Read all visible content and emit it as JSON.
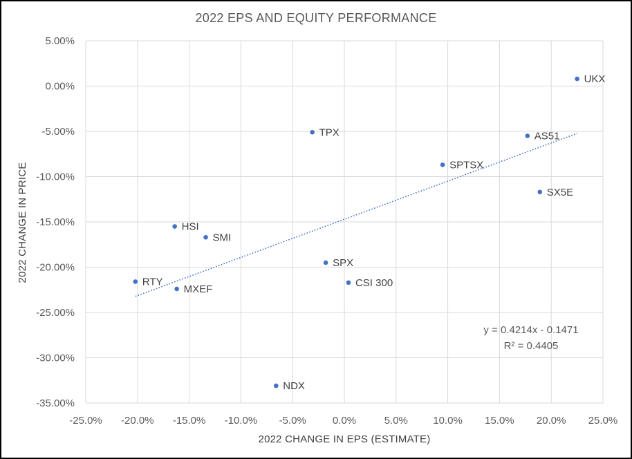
{
  "chart_data": {
    "type": "scatter",
    "title": "2022 EPS AND EQUITY PERFORMANCE",
    "xlabel": "2022 CHANGE IN EPS (ESTIMATE)",
    "ylabel": "2022 CHANGE IN PRICE",
    "xlim": [
      -0.25,
      0.25
    ],
    "ylim": [
      -0.35,
      0.05
    ],
    "x_ticks": [
      -0.25,
      -0.2,
      -0.15,
      -0.1,
      -0.05,
      0,
      0.05,
      0.1,
      0.15,
      0.2,
      0.25
    ],
    "x_tick_labels": [
      "-25.0%",
      "-20.0%",
      "-15.0%",
      "-10.0%",
      "-5.0%",
      "0.0%",
      "5.0%",
      "10.0%",
      "15.0%",
      "20.0%",
      "25.0%"
    ],
    "y_ticks": [
      0.05,
      0,
      -0.05,
      -0.1,
      -0.15,
      -0.2,
      -0.25,
      -0.3,
      -0.35
    ],
    "y_tick_labels": [
      "5.00%",
      "0.00%",
      "-5.00%",
      "-10.00%",
      "-15.00%",
      "-20.00%",
      "-25.00%",
      "-30.00%",
      "-35.00%"
    ],
    "grid": true,
    "marker_color": "#4472C4",
    "points": [
      {
        "label": "UKX",
        "x": 0.225,
        "y": 0.008
      },
      {
        "label": "TPX",
        "x": -0.031,
        "y": -0.051
      },
      {
        "label": "AS51",
        "x": 0.177,
        "y": -0.055
      },
      {
        "label": "SPTSX",
        "x": 0.095,
        "y": -0.087
      },
      {
        "label": "SX5E",
        "x": 0.189,
        "y": -0.117
      },
      {
        "label": "HSI",
        "x": -0.164,
        "y": -0.155
      },
      {
        "label": "SMI",
        "x": -0.134,
        "y": -0.167
      },
      {
        "label": "SPX",
        "x": -0.018,
        "y": -0.195
      },
      {
        "label": "RTY",
        "x": -0.202,
        "y": -0.216
      },
      {
        "label": "CSI 300",
        "x": 0.004,
        "y": -0.217
      },
      {
        "label": "MXEF",
        "x": -0.162,
        "y": -0.224
      },
      {
        "label": "NDX",
        "x": -0.066,
        "y": -0.331
      }
    ],
    "trendline": {
      "type": "linear",
      "slope": 0.4214,
      "intercept": -0.1471,
      "x_range": [
        -0.202,
        0.225
      ],
      "equation": "y = 0.4214x - 0.1471",
      "r_squared": "R² = 0.4405"
    }
  }
}
